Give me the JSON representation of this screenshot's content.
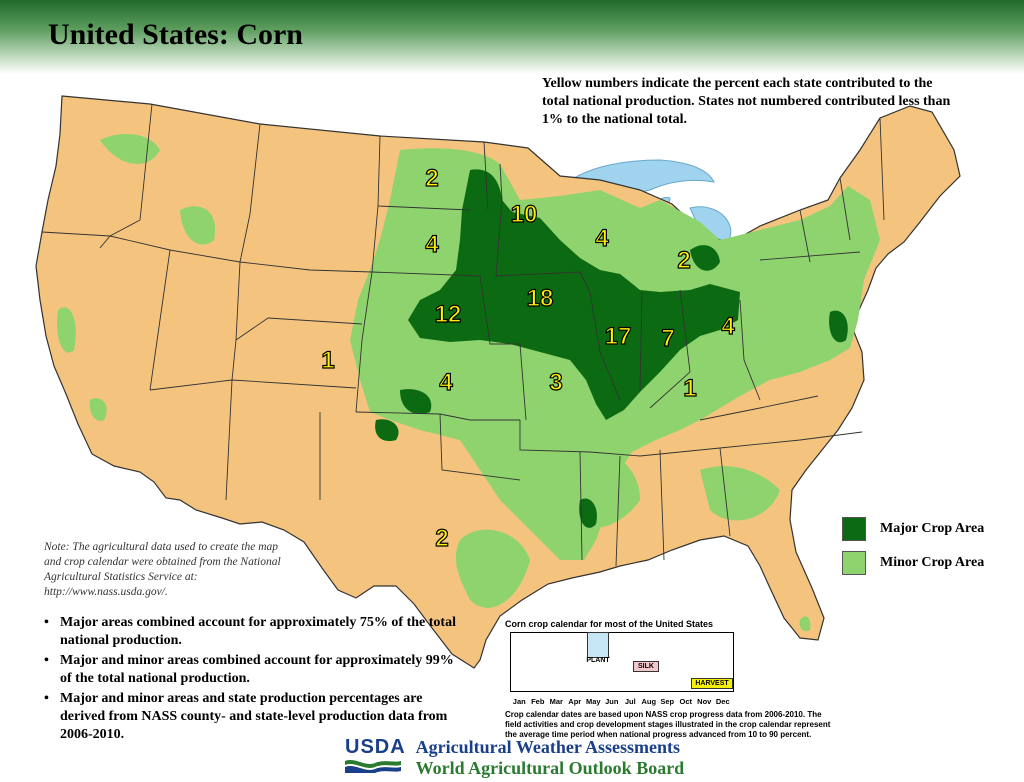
{
  "header": {
    "title": "United States:  Corn"
  },
  "yellow_note": "Yellow numbers indicate the percent each state contributed to the total national production.  States not numbered contributed less than 1% to the national total.",
  "colors": {
    "major": "#0c6b12",
    "minor": "#8fd36e",
    "land": "#f4c47e",
    "water": "#9fd3ee",
    "state_number": "#fff200",
    "header_green": "#1f6a2c"
  },
  "state_numbers": [
    {
      "state": "North Dakota",
      "value": "2"
    },
    {
      "state": "Minnesota",
      "value": "10"
    },
    {
      "state": "South Dakota",
      "value": "4"
    },
    {
      "state": "Wisconsin",
      "value": "4"
    },
    {
      "state": "Michigan",
      "value": "2"
    },
    {
      "state": "Iowa",
      "value": "18"
    },
    {
      "state": "Nebraska",
      "value": "12"
    },
    {
      "state": "Illinois",
      "value": "17"
    },
    {
      "state": "Indiana",
      "value": "7"
    },
    {
      "state": "Ohio",
      "value": "4"
    },
    {
      "state": "Colorado",
      "value": "1"
    },
    {
      "state": "Kansas",
      "value": "4"
    },
    {
      "state": "Missouri",
      "value": "3"
    },
    {
      "state": "Kentucky",
      "value": "1"
    },
    {
      "state": "Texas",
      "value": "2"
    }
  ],
  "legend": {
    "major": "Major Crop Area",
    "minor": "Minor Crop Area"
  },
  "note": "Note:  The agricultural data used to create the map and crop calendar were obtained from the National Agricultural Statistics Service at: http://www.nass.usda.gov/.",
  "bullets": [
    "Major areas combined account for approximately 75% of the total national production.",
    "Major and minor areas combined account for approximately 99% of the total national production.",
    "Major and minor areas and state production percentages are derived from NASS county- and state-level production data from 2006-2010."
  ],
  "calendar": {
    "title": "Corn crop calendar for most of the United States",
    "plant": "PLANT",
    "silk": "SILK",
    "harvest": "HARVEST",
    "months": [
      "Jan",
      "Feb",
      "Mar",
      "Apr",
      "May",
      "Jun",
      "Jul",
      "Aug",
      "Sep",
      "Oct",
      "Nov",
      "Dec"
    ],
    "note": "Crop calendar dates are based upon NASS crop progress data from 2006-2010.  The field activities and crop development stages illustrated in the crop calendar represent the average time period when national progress advanced from 10 to 90 percent.",
    "plant_color": "#c6e6f5",
    "silk_color": "#f3c6cc",
    "harvest_color": "#f5f000"
  },
  "footer": {
    "logo": "USDA",
    "line1": "Agricultural Weather Assessments",
    "line2": "World Agricultural Outlook Board"
  }
}
